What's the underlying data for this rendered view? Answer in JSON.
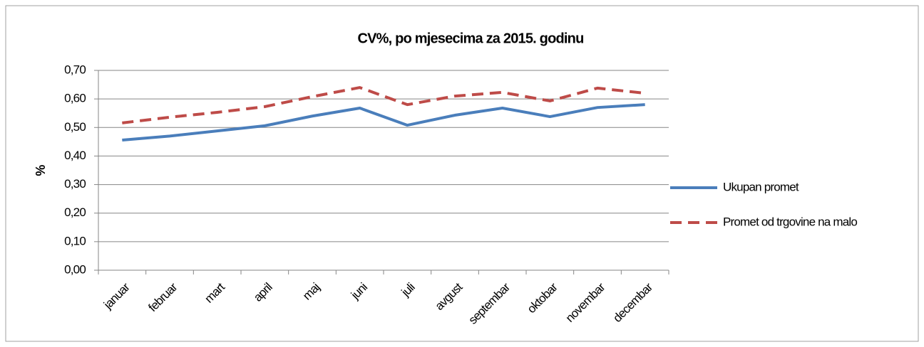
{
  "chart_data": {
    "type": "line",
    "title": "CV%, po mjesecima za 2015. godinu",
    "y_label": "%",
    "categories": [
      "januar",
      "februar",
      "mart",
      "april",
      "maj",
      "juni",
      "juli",
      "avgust",
      "septembar",
      "oktobar",
      "novembar",
      "decembar"
    ],
    "series": [
      {
        "name": "Ukupan promet",
        "color": "#4a7ebb",
        "dash": "solid",
        "values": [
          0.456,
          0.47,
          0.488,
          0.506,
          0.54,
          0.568,
          0.508,
          0.543,
          0.568,
          0.538,
          0.57,
          0.58
        ]
      },
      {
        "name": "Promet od trgovine na malo",
        "color": "#be4b48",
        "dash": "dashed",
        "values": [
          0.516,
          0.536,
          0.553,
          0.573,
          0.608,
          0.64,
          0.58,
          0.61,
          0.623,
          0.593,
          0.638,
          0.62
        ]
      }
    ],
    "ylim": [
      0,
      0.7
    ],
    "yticks": [
      {
        "value": 0,
        "label": "0,00"
      },
      {
        "value": 0.1,
        "label": "0,10"
      },
      {
        "value": 0.2,
        "label": "0,20"
      },
      {
        "value": 0.3,
        "label": "0,30"
      },
      {
        "value": 0.4,
        "label": "0,40"
      },
      {
        "value": 0.5,
        "label": "0,50"
      },
      {
        "value": 0.6,
        "label": "0,60"
      },
      {
        "value": 0.7,
        "label": "0,70"
      }
    ],
    "grid": true,
    "legend": "right"
  }
}
